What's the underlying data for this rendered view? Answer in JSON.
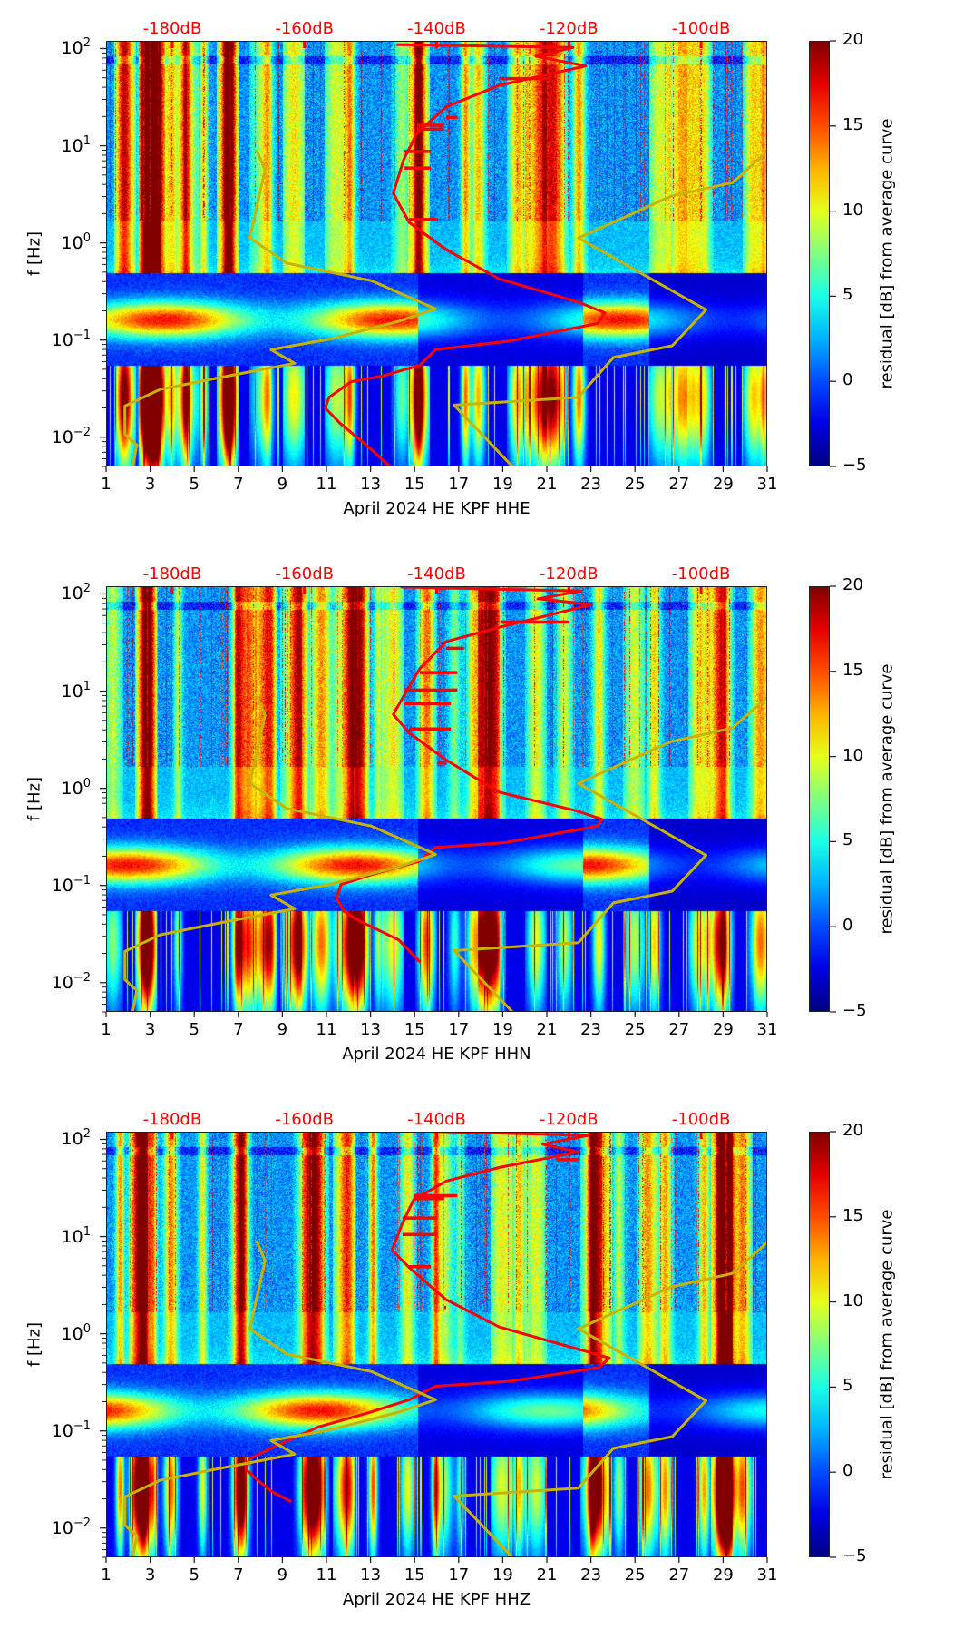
{
  "chart_data": [
    {
      "type": "heatmap",
      "title": "",
      "xlabel": "April 2024 HE KPF  HHE",
      "ylabel": "f [Hz]",
      "x_ticks": [
        "1",
        "3",
        "5",
        "7",
        "9",
        "11",
        "13",
        "15",
        "17",
        "19",
        "21",
        "23",
        "25",
        "27",
        "29",
        "31"
      ],
      "xlim": [
        1,
        31
      ],
      "y_scale": "log",
      "ylim": [
        0.005,
        120
      ],
      "y_ticks": [
        {
          "base": "10",
          "exp": "2",
          "value": 100
        },
        {
          "base": "10",
          "exp": "1",
          "value": 10
        },
        {
          "base": "10",
          "exp": "0",
          "value": 1
        },
        {
          "base": "10",
          "exp": "−1",
          "value": 0.1
        },
        {
          "base": "10",
          "exp": "−2",
          "value": 0.01
        }
      ],
      "top_axis": {
        "ticks": [
          "-180dB",
          "-160dB",
          "-140dB",
          "-120dB",
          "-100dB"
        ],
        "values": [
          -180,
          -160,
          -140,
          -120,
          -100
        ],
        "range": [
          -190,
          -90
        ]
      },
      "colorbar": {
        "label": "residual [dB] from average curve",
        "range": [
          -5,
          20
        ],
        "ticks": [
          "20",
          "15",
          "10",
          "5",
          "0",
          "−5"
        ],
        "tick_values": [
          20,
          15,
          10,
          5,
          0,
          -5
        ],
        "colormap": "jet"
      },
      "series": [
        {
          "name": "station-psd-curve",
          "color": "#ff0000",
          "points_db_log10f": [
            [
              -146.2,
              2.05
            ],
            [
              -119.5,
              2.02
            ],
            [
              -125.1,
              1.93
            ],
            [
              -117.6,
              1.83
            ],
            [
              -130.7,
              1.63
            ],
            [
              -138.7,
              1.41
            ],
            [
              -143.1,
              1.14
            ],
            [
              -145.1,
              0.87
            ],
            [
              -146.7,
              0.52
            ],
            [
              -144.3,
              0.22
            ],
            [
              -138.7,
              -0.06
            ],
            [
              -130.7,
              -0.36
            ],
            [
              -118.7,
              -0.6
            ],
            [
              -114.7,
              -0.71
            ],
            [
              -115.8,
              -0.82
            ],
            [
              -129.1,
              -1.0
            ],
            [
              -140.3,
              -1.09
            ],
            [
              -142.7,
              -1.25
            ],
            [
              -148.3,
              -1.36
            ],
            [
              -153.1,
              -1.42
            ],
            [
              -156.4,
              -1.58
            ],
            [
              -157.0,
              -1.69
            ],
            [
              -154.7,
              -1.85
            ],
            [
              -150.8,
              -2.07
            ],
            [
              -146.4,
              -2.34
            ]
          ],
          "spikes_db_log10f": [
            [
              -123,
              1.7
            ],
            [
              -137,
              1.3
            ],
            [
              -139,
              1.22
            ],
            [
              -139,
              1.18
            ],
            [
              -141,
              0.95
            ],
            [
              -141,
              0.78
            ],
            [
              -140,
              0.25
            ]
          ]
        },
        {
          "name": "low-noise-model",
          "color": "#c8b400",
          "points_db_log10f": [
            [
              -167.4,
              0.97
            ],
            [
              -166.1,
              0.76
            ],
            [
              -168.4,
              0.06
            ],
            [
              -162.8,
              -0.2
            ],
            [
              -150.0,
              -0.38
            ],
            [
              -140.3,
              -0.67
            ],
            [
              -146.0,
              -0.8
            ],
            [
              -156.3,
              -0.98
            ],
            [
              -165.2,
              -1.09
            ],
            [
              -161.6,
              -1.23
            ],
            [
              -173.2,
              -1.38
            ],
            [
              -182.0,
              -1.5
            ],
            [
              -187.3,
              -1.67
            ],
            [
              -187.3,
              -1.96
            ],
            [
              -185.5,
              -2.07
            ],
            [
              -186.1,
              -2.29
            ]
          ]
        },
        {
          "name": "high-noise-model",
          "color": "#c8b400",
          "points_db_log10f": [
            [
              -89.8,
              0.97
            ],
            [
              -95.4,
              0.63
            ],
            [
              -104.7,
              0.49
            ],
            [
              -118.7,
              0.06
            ],
            [
              -99.4,
              -0.68
            ],
            [
              -104.5,
              -1.05
            ],
            [
              -113.4,
              -1.17
            ],
            [
              -118.7,
              -1.58
            ],
            [
              -137.5,
              -1.66
            ],
            [
              -128.0,
              -2.34
            ]
          ]
        }
      ]
    },
    {
      "type": "heatmap",
      "title": "",
      "xlabel": "April 2024 HE KPF  HHN",
      "ylabel": "f [Hz]",
      "x_ticks": [
        "1",
        "3",
        "5",
        "7",
        "9",
        "11",
        "13",
        "15",
        "17",
        "19",
        "21",
        "23",
        "25",
        "27",
        "29",
        "31"
      ],
      "xlim": [
        1,
        31
      ],
      "y_scale": "log",
      "ylim": [
        0.005,
        120
      ],
      "y_ticks": [
        {
          "base": "10",
          "exp": "2",
          "value": 100
        },
        {
          "base": "10",
          "exp": "1",
          "value": 10
        },
        {
          "base": "10",
          "exp": "0",
          "value": 1
        },
        {
          "base": "10",
          "exp": "−1",
          "value": 0.1
        },
        {
          "base": "10",
          "exp": "−2",
          "value": 0.01
        }
      ],
      "top_axis": {
        "ticks": [
          "-180dB",
          "-160dB",
          "-140dB",
          "-120dB",
          "-100dB"
        ],
        "values": [
          -180,
          -160,
          -140,
          -120,
          -100
        ],
        "range": [
          -190,
          -90
        ]
      },
      "colorbar": {
        "label": "residual [dB] from average curve",
        "range": [
          -5,
          20
        ],
        "ticks": [
          "20",
          "15",
          "10",
          "5",
          "0",
          "−5"
        ],
        "tick_values": [
          20,
          15,
          10,
          5,
          0,
          -5
        ],
        "colormap": "jet"
      },
      "series": [
        {
          "name": "station-psd-curve",
          "color": "#ff0000",
          "points_db_log10f": [
            [
              -145.6,
              2.08
            ],
            [
              -118.3,
              2.04
            ],
            [
              -124.8,
              1.96
            ],
            [
              -116.7,
              1.9
            ],
            [
              -130.4,
              1.67
            ],
            [
              -138.7,
              1.52
            ],
            [
              -142.7,
              1.24
            ],
            [
              -145.1,
              0.96
            ],
            [
              -146.7,
              0.77
            ],
            [
              -144.3,
              0.58
            ],
            [
              -138.7,
              0.3
            ],
            [
              -130.7,
              -0.03
            ],
            [
              -119.1,
              -0.22
            ],
            [
              -115.1,
              -0.31
            ],
            [
              -115.8,
              -0.38
            ],
            [
              -129.8,
              -0.55
            ],
            [
              -140.3,
              -0.6
            ],
            [
              -142.7,
              -0.74
            ],
            [
              -150.0,
              -0.88
            ],
            [
              -154.6,
              -0.98
            ],
            [
              -155.3,
              -1.12
            ],
            [
              -154.1,
              -1.26
            ],
            [
              -151.7,
              -1.36
            ],
            [
              -145.9,
              -1.55
            ],
            [
              -142.6,
              -1.78
            ]
          ],
          "spikes_db_log10f": [
            [
              -120,
              1.72
            ],
            [
              -136,
              1.45
            ],
            [
              -137,
              1.2
            ],
            [
              -137,
              1.02
            ],
            [
              -138,
              0.88
            ],
            [
              -138,
              0.62
            ],
            [
              -140,
              0.27
            ]
          ]
        },
        {
          "name": "low-noise-model",
          "color": "#c8b400",
          "points_db_log10f": [
            [
              -167.4,
              0.97
            ],
            [
              -166.1,
              0.76
            ],
            [
              -168.4,
              0.06
            ],
            [
              -162.8,
              -0.2
            ],
            [
              -150.0,
              -0.38
            ],
            [
              -140.3,
              -0.67
            ],
            [
              -146.0,
              -0.8
            ],
            [
              -156.3,
              -0.98
            ],
            [
              -165.2,
              -1.09
            ],
            [
              -161.6,
              -1.23
            ],
            [
              -173.2,
              -1.38
            ],
            [
              -182.0,
              -1.5
            ],
            [
              -187.3,
              -1.67
            ],
            [
              -187.3,
              -1.96
            ],
            [
              -185.5,
              -2.07
            ],
            [
              -186.1,
              -2.29
            ]
          ]
        },
        {
          "name": "high-noise-model",
          "color": "#c8b400",
          "points_db_log10f": [
            [
              -89.8,
              0.97
            ],
            [
              -95.4,
              0.63
            ],
            [
              -104.7,
              0.49
            ],
            [
              -118.7,
              0.06
            ],
            [
              -99.4,
              -0.68
            ],
            [
              -104.5,
              -1.05
            ],
            [
              -113.4,
              -1.17
            ],
            [
              -118.7,
              -1.58
            ],
            [
              -137.5,
              -1.66
            ],
            [
              -128.0,
              -2.34
            ]
          ]
        }
      ]
    },
    {
      "type": "heatmap",
      "title": "",
      "xlabel": "April 2024 HE KPF  HHZ",
      "ylabel": "f [Hz]",
      "x_ticks": [
        "1",
        "3",
        "5",
        "7",
        "9",
        "11",
        "13",
        "15",
        "17",
        "19",
        "21",
        "23",
        "25",
        "27",
        "29",
        "31"
      ],
      "xlim": [
        1,
        31
      ],
      "y_scale": "log",
      "ylim": [
        0.005,
        120
      ],
      "y_ticks": [
        {
          "base": "10",
          "exp": "2",
          "value": 100
        },
        {
          "base": "10",
          "exp": "1",
          "value": 10
        },
        {
          "base": "10",
          "exp": "0",
          "value": 1
        },
        {
          "base": "10",
          "exp": "−1",
          "value": 0.1
        },
        {
          "base": "10",
          "exp": "−2",
          "value": 0.01
        }
      ],
      "top_axis": {
        "ticks": [
          "-180dB",
          "-160dB",
          "-140dB",
          "-120dB",
          "-100dB"
        ],
        "values": [
          -180,
          -160,
          -140,
          -120,
          -100
        ],
        "range": [
          -190,
          -90
        ]
      },
      "colorbar": {
        "label": "residual [dB] from average curve",
        "range": [
          -5,
          20
        ],
        "ticks": [
          "20",
          "15",
          "10",
          "5",
          "0",
          "−5"
        ],
        "tick_values": [
          20,
          15,
          10,
          5,
          0,
          -5
        ],
        "colormap": "jet"
      },
      "series": [
        {
          "name": "station-psd-curve",
          "color": "#ff0000",
          "points_db_log10f": [
            [
              -145.6,
              2.1
            ],
            [
              -117.2,
              2.05
            ],
            [
              -124.1,
              1.96
            ],
            [
              -118.7,
              1.88
            ],
            [
              -130.7,
              1.72
            ],
            [
              -138.7,
              1.58
            ],
            [
              -143.6,
              1.39
            ],
            [
              -145.3,
              1.15
            ],
            [
              -146.9,
              0.87
            ],
            [
              -144.3,
              0.69
            ],
            [
              -138.7,
              0.36
            ],
            [
              -130.7,
              0.08
            ],
            [
              -118.7,
              -0.15
            ],
            [
              -114.0,
              -0.24
            ],
            [
              -115.6,
              -0.34
            ],
            [
              -129.1,
              -0.48
            ],
            [
              -140.3,
              -0.53
            ],
            [
              -144.3,
              -0.67
            ],
            [
              -150.8,
              -0.81
            ],
            [
              -158.0,
              -0.95
            ],
            [
              -164.3,
              -1.14
            ],
            [
              -168.5,
              -1.28
            ],
            [
              -168.9,
              -1.39
            ],
            [
              -167.7,
              -1.47
            ],
            [
              -165.2,
              -1.61
            ],
            [
              -162.1,
              -1.72
            ]
          ],
          "spikes_db_log10f": [
            [
              -122,
              1.8
            ],
            [
              -137,
              1.43
            ],
            [
              -139,
              1.4
            ],
            [
              -140,
              1.2
            ],
            [
              -140,
              1.03
            ],
            [
              -141,
              0.7
            ],
            [
              -139,
              0.28
            ]
          ]
        },
        {
          "name": "low-noise-model",
          "color": "#c8b400",
          "points_db_log10f": [
            [
              -167.4,
              0.97
            ],
            [
              -166.1,
              0.76
            ],
            [
              -168.4,
              0.06
            ],
            [
              -162.8,
              -0.2
            ],
            [
              -150.0,
              -0.38
            ],
            [
              -140.3,
              -0.67
            ],
            [
              -146.0,
              -0.8
            ],
            [
              -156.3,
              -0.98
            ],
            [
              -165.2,
              -1.09
            ],
            [
              -161.6,
              -1.23
            ],
            [
              -173.2,
              -1.38
            ],
            [
              -182.0,
              -1.5
            ],
            [
              -187.3,
              -1.67
            ],
            [
              -187.3,
              -1.96
            ],
            [
              -185.5,
              -2.07
            ],
            [
              -186.1,
              -2.29
            ]
          ]
        },
        {
          "name": "high-noise-model",
          "color": "#c8b400",
          "points_db_log10f": [
            [
              -89.8,
              0.97
            ],
            [
              -95.4,
              0.63
            ],
            [
              -104.7,
              0.49
            ],
            [
              -118.7,
              0.06
            ],
            [
              -99.4,
              -0.68
            ],
            [
              -104.5,
              -1.05
            ],
            [
              -113.4,
              -1.17
            ],
            [
              -118.7,
              -1.58
            ],
            [
              -137.5,
              -1.66
            ],
            [
              -128.0,
              -2.34
            ]
          ]
        }
      ]
    }
  ]
}
